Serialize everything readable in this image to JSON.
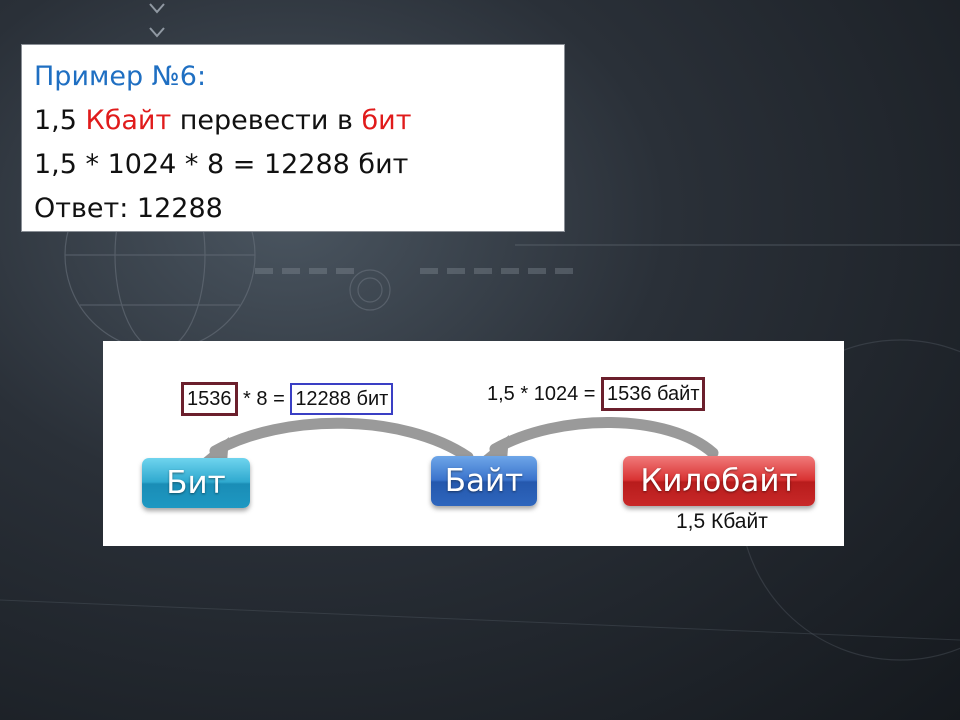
{
  "example": {
    "title": "Пример №6:",
    "task_prefix": "1,5 ",
    "task_unit_from": "Кбайт",
    "task_middle": " перевести в ",
    "task_unit_to": "бит",
    "calc": "1,5 * 1024 * 8 = 12288 бит",
    "answer": "Ответ:  12288"
  },
  "diagram": {
    "eq_left": {
      "box1": "1536",
      "middle": " * 8 = ",
      "box2": "12288 бит"
    },
    "eq_right": {
      "prefix": "1,5 * 1024 = ",
      "box": "1536 байт"
    },
    "buttons": {
      "bit": "Бит",
      "byte": "Байт",
      "kilobyte": "Килобайт"
    },
    "caption": "1,5 Кбайт"
  },
  "colors": {
    "title_blue": "#1f6fc2",
    "highlight_red": "#e01b1b",
    "box_maroon": "#6b1f2c",
    "box_blue": "#3a3fc4"
  }
}
